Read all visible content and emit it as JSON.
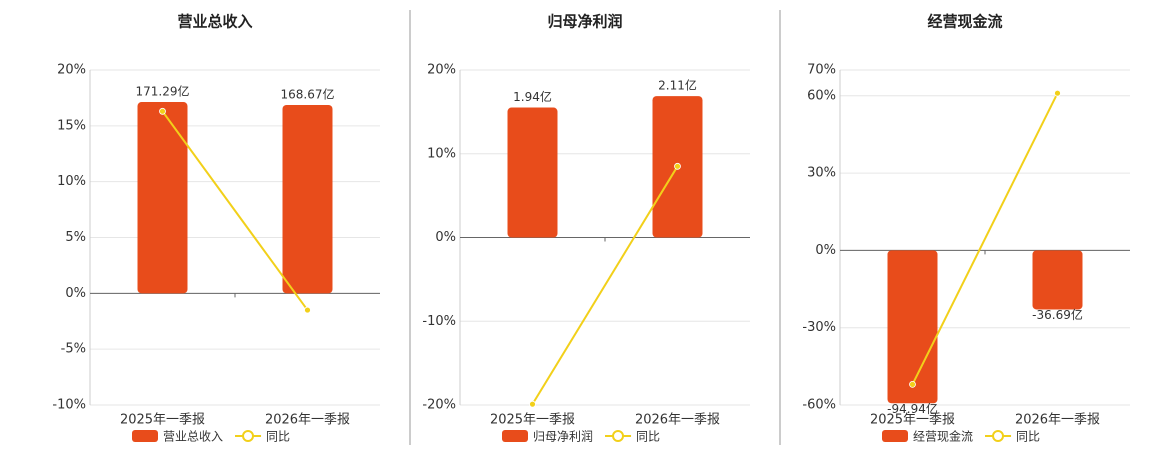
{
  "chart_data": [
    {
      "type": "bar",
      "title": "营业总收入",
      "categories": [
        "2025年一季报",
        "2026年一季报"
      ],
      "series": [
        {
          "name": "营业总收入",
          "type": "bar",
          "axis": "y2",
          "color": "#e84c1b",
          "values": [
            171.29,
            168.67
          ],
          "value_labels": [
            "171.29亿",
            "168.67亿"
          ]
        },
        {
          "name": "同比",
          "type": "line",
          "color": "#f2d01a",
          "values": [
            16.3,
            -1.5
          ]
        }
      ],
      "ylim": [
        -10,
        20
      ],
      "yticks": [
        {
          "value": -10,
          "label": "-10%"
        },
        {
          "value": -5,
          "label": "-5%"
        },
        {
          "value": 0,
          "label": "0%"
        },
        {
          "value": 5,
          "label": "5%"
        },
        {
          "value": 10,
          "label": "10%"
        },
        {
          "value": 15,
          "label": "15%"
        },
        {
          "value": 20,
          "label": "20%"
        }
      ],
      "y2lim": [
        -100,
        200
      ],
      "grid": true
    },
    {
      "type": "bar",
      "title": "归母净利润",
      "categories": [
        "2025年一季报",
        "2026年一季报"
      ],
      "series": [
        {
          "name": "归母净利润",
          "type": "bar",
          "axis": "y2",
          "color": "#e84c1b",
          "values": [
            1.94,
            2.11
          ],
          "value_labels": [
            "1.94亿",
            "2.11亿"
          ]
        },
        {
          "name": "同比",
          "type": "line",
          "color": "#f2d01a",
          "values": [
            -19.9,
            8.5
          ]
        }
      ],
      "ylim": [
        -20,
        20
      ],
      "yticks": [
        {
          "value": -20,
          "label": "-20%"
        },
        {
          "value": -10,
          "label": "-10%"
        },
        {
          "value": 0,
          "label": "0%"
        },
        {
          "value": 10,
          "label": "10%"
        },
        {
          "value": 20,
          "label": "20%"
        }
      ],
      "y2lim": [
        -2.5,
        2.5
      ],
      "grid": true
    },
    {
      "type": "bar",
      "title": "经营现金流",
      "categories": [
        "2025年一季报",
        "2026年一季报"
      ],
      "series": [
        {
          "name": "经营现金流",
          "type": "bar",
          "axis": "y2",
          "color": "#e84c1b",
          "values": [
            -94.94,
            -36.69
          ],
          "value_labels": [
            "-94.94亿",
            "-36.69亿"
          ]
        },
        {
          "name": "同比",
          "type": "line",
          "color": "#f2d01a",
          "values": [
            -52,
            61
          ]
        }
      ],
      "ylim": [
        -60,
        70
      ],
      "yticks": [
        {
          "value": -60,
          "label": "-60%"
        },
        {
          "value": -30,
          "label": "-30%"
        },
        {
          "value": 0,
          "label": "0%"
        },
        {
          "value": 30,
          "label": "30%"
        },
        {
          "value": 60,
          "label": "60%"
        },
        {
          "value": 70,
          "label": "70%"
        }
      ],
      "y2lim": [
        -96,
        112
      ],
      "grid": true
    }
  ]
}
